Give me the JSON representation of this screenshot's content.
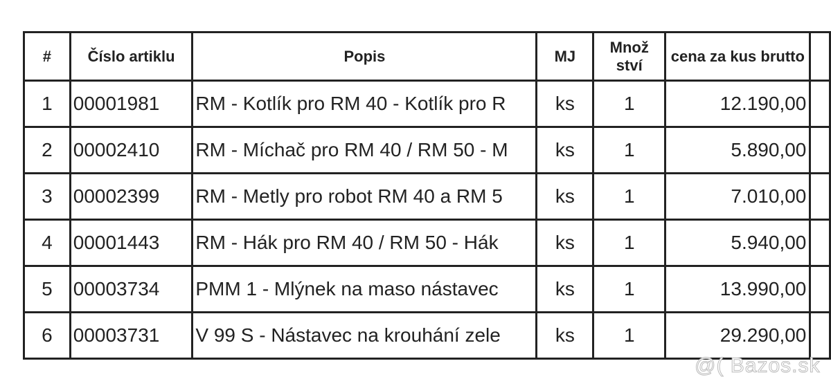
{
  "headers": [
    "#",
    "Číslo artiklu",
    "Popis",
    "MJ",
    "Množ ství",
    "cena za kus brutto"
  ],
  "rows": [
    {
      "n": "1",
      "code": "00001981",
      "desc": "RM - Kotlík pro RM 40 - Kotlík pro R",
      "unit": "ks",
      "qty": "1",
      "price": "12.190,00"
    },
    {
      "n": "2",
      "code": "00002410",
      "desc": "RM - Míchač pro RM 40 / RM 50 - M",
      "unit": "ks",
      "qty": "1",
      "price": "5.890,00"
    },
    {
      "n": "3",
      "code": "00002399",
      "desc": "RM - Metly pro robot RM 40 a RM 5",
      "unit": "ks",
      "qty": "1",
      "price": "7.010,00"
    },
    {
      "n": "4",
      "code": "00001443",
      "desc": "RM - Hák pro RM 40 / RM 50 - Hák",
      "unit": "ks",
      "qty": "1",
      "price": "5.940,00"
    },
    {
      "n": "5",
      "code": "00003734",
      "desc": "PMM 1 - Mlýnek na maso nástavec",
      "unit": "ks",
      "qty": "1",
      "price": "13.990,00"
    },
    {
      "n": "6",
      "code": "00003731",
      "desc": "V 99 S - Nástavec na krouhání zele",
      "unit": "ks",
      "qty": "1",
      "price": "29.290,00"
    }
  ],
  "watermark": "@( Bazos.sk"
}
